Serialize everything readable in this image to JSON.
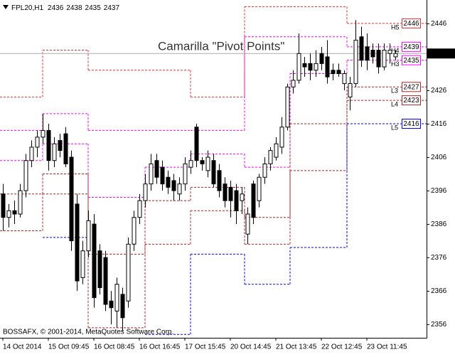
{
  "chart_data": {
    "type": "candlestick",
    "title": "Camarilla \"Pivot Points\"",
    "symbol": "FPL20,H1",
    "copyright": "BOSSAFX, © 2001-2014, MetaQuotes Software Corp.",
    "categories": [
      "14 Oct 2014",
      null,
      null,
      null,
      null,
      null,
      null,
      null,
      "15 Oct 09:45",
      null,
      null,
      null,
      null,
      null,
      null,
      null,
      "16 Oct 08:45",
      null,
      null,
      null,
      null,
      null,
      null,
      null,
      "16 Oct 16:45",
      null,
      null,
      null,
      null,
      null,
      null,
      null,
      "17 Oct 15:45",
      null,
      null,
      null,
      null,
      null,
      null,
      null,
      "20 Oct 14:45",
      null,
      null,
      null,
      null,
      null,
      null,
      null,
      "21 Oct 13:45",
      null,
      null,
      null,
      null,
      null,
      null,
      null,
      "22 Oct 12:45",
      null,
      null,
      null,
      null,
      null,
      null,
      null,
      "23 Oct 11:45",
      null,
      null,
      null,
      null,
      null
    ],
    "open": [
      2395,
      2388,
      2390,
      2389,
      2396,
      2405,
      2409,
      2412,
      2414,
      2405,
      2411,
      2413,
      2406,
      2392,
      2370,
      2378,
      2386,
      2378,
      2376,
      2363,
      2360,
      2365,
      2363,
      2380,
      2388,
      2393,
      2398,
      2405,
      2403,
      2400,
      2399,
      2395,
      2398,
      2403,
      2415,
      2405,
      2402,
      2405,
      2402,
      2398,
      2397,
      2396,
      2393,
      2383,
      2398,
      2393,
      2400,
      2404,
      2406,
      2409,
      2415,
      2427,
      2429,
      2434,
      2434,
      2432,
      2437,
      2436,
      2432,
      2432,
      2428,
      2424,
      2428,
      2442,
      2439,
      2438,
      2438,
      2433,
      2437,
      2436
    ],
    "high": [
      2398,
      2392,
      2393,
      2398,
      2407,
      2411,
      2414,
      2419,
      2416,
      2412,
      2413,
      2415,
      2408,
      2395,
      2381,
      2390,
      2389,
      2380,
      2378,
      2366,
      2370,
      2367,
      2382,
      2390,
      2395,
      2401,
      2407,
      2407,
      2405,
      2402,
      2401,
      2400,
      2406,
      2408,
      2416,
      2406,
      2408,
      2407,
      2404,
      2400,
      2399,
      2398,
      2397,
      2391,
      2399,
      2401,
      2406,
      2409,
      2412,
      2418,
      2428,
      2432,
      2443,
      2436,
      2437,
      2438,
      2439,
      2441,
      2434,
      2434,
      2432,
      2430,
      2447,
      2445,
      2443,
      2440,
      2440,
      2440,
      2440,
      2438
    ],
    "low": [
      2384,
      2385,
      2386,
      2388,
      2394,
      2403,
      2406,
      2410,
      2402,
      2403,
      2406,
      2403,
      2378,
      2366,
      2368,
      2376,
      2361,
      2365,
      2360,
      2356,
      2355,
      2354,
      2361,
      2378,
      2386,
      2391,
      2396,
      2398,
      2396,
      2395,
      2393,
      2393,
      2396,
      2401,
      2403,
      2402,
      2400,
      2397,
      2394,
      2391,
      2388,
      2386,
      2389,
      2380,
      2386,
      2391,
      2398,
      2402,
      2405,
      2407,
      2414,
      2425,
      2428,
      2430,
      2429,
      2430,
      2432,
      2428,
      2429,
      2430,
      2426,
      2420,
      2427,
      2433,
      2432,
      2434,
      2431,
      2432,
      2434,
      2435
    ],
    "close": [
      2388,
      2390,
      2389,
      2396,
      2405,
      2409,
      2412,
      2414,
      2405,
      2410,
      2408,
      2404,
      2381,
      2369,
      2378,
      2387,
      2364,
      2367,
      2362,
      2361,
      2368,
      2358,
      2380,
      2388,
      2393,
      2398,
      2404,
      2400,
      2398,
      2397,
      2396,
      2398,
      2404,
      2405,
      2405,
      2404,
      2406,
      2398,
      2396,
      2393,
      2393,
      2390,
      2395,
      2389,
      2388,
      2400,
      2404,
      2408,
      2410,
      2415,
      2427,
      2429,
      2437,
      2433,
      2432,
      2434,
      2434,
      2430,
      2431,
      2431,
      2431,
      2428,
      2441,
      2435,
      2435,
      2436,
      2433,
      2438,
      2438,
      2437
    ],
    "ylim": [
      2352,
      2453
    ],
    "yticks": [
      2356,
      2366,
      2376,
      2386,
      2396,
      2406,
      2416,
      2426,
      2446
    ],
    "up_color": "#ffffff",
    "down_color": "#000000",
    "pivot_segment_edges": [
      7,
      15,
      25,
      33,
      42.5,
      50.5,
      60.5
    ],
    "pivot_series": [
      {
        "name": "H5",
        "color": "#e03030",
        "values": [
          2424,
          2438,
          2432,
          2432,
          2424,
          2451,
          2451,
          2446
        ]
      },
      {
        "name": "H4",
        "color": "#ff00ff",
        "values": [
          2414,
          2419,
          2414,
          2414,
          2414,
          2442,
          2442,
          2439
        ]
      },
      {
        "name": "H3",
        "color": "#ff00ff",
        "values": [
          2405,
          2410,
          2394,
          2403,
          2407,
          2403,
          2431,
          2435
        ]
      },
      {
        "name": "L3",
        "color": "#b22222",
        "values": [
          2395,
          2401,
          2377,
          2393,
          2397,
          2388,
          2416,
          2427
        ]
      },
      {
        "name": "L4",
        "color": "#b22222",
        "values": [
          2384,
          2395,
          2355,
          2380,
          2390,
          2380,
          2402,
          2423
        ]
      },
      {
        "name": "L5",
        "color": "#0000ff",
        "values": [
          null,
          2382,
          null,
          2353,
          2377,
          2368,
          2379,
          2416
        ]
      }
    ]
  }
}
